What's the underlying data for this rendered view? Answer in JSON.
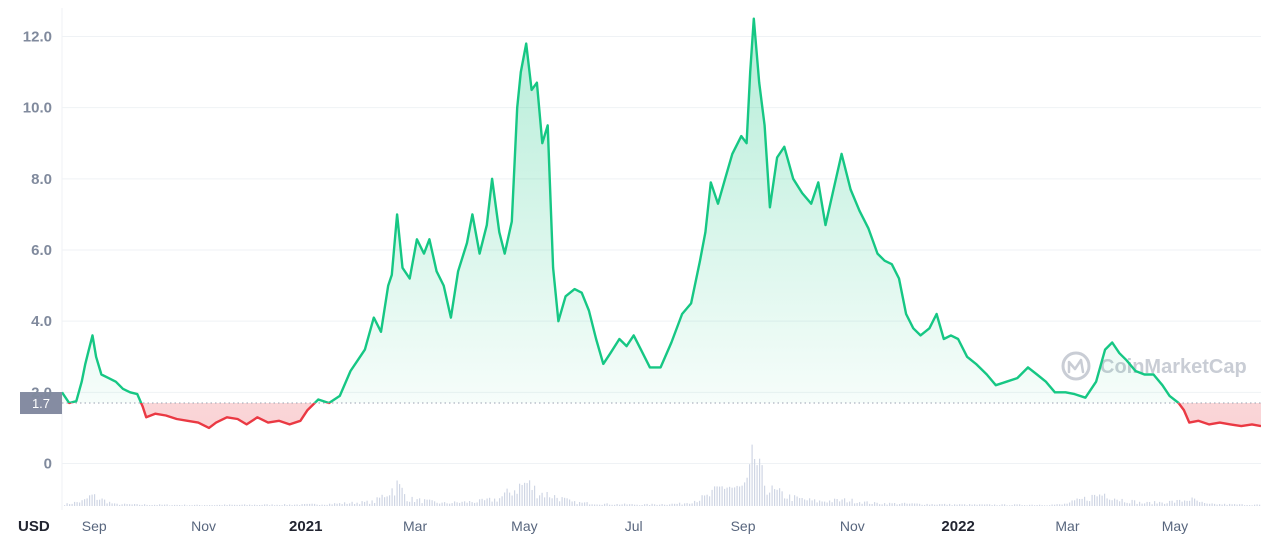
{
  "chart_data": {
    "type": "line",
    "currency_label": "USD",
    "reference_price": 1.7,
    "reference_label": "1.7",
    "y_ticks": [
      0,
      2.0,
      4.0,
      6.0,
      8.0,
      10.0,
      12.0
    ],
    "y_tick_labels": [
      "0",
      "2.0",
      "4.0",
      "6.0",
      "8.0",
      "10.0",
      "12.0"
    ],
    "ylim": [
      -1.25,
      12.8
    ],
    "xlim": [
      "2020-08-20",
      "2022-06-20"
    ],
    "x_ticks": [
      {
        "date": "2020-09-07",
        "label": "Sep",
        "year": false
      },
      {
        "date": "2020-11-07",
        "label": "Nov",
        "year": false
      },
      {
        "date": "2021-01-03",
        "label": "2021",
        "year": true
      },
      {
        "date": "2021-03-05",
        "label": "Mar",
        "year": false
      },
      {
        "date": "2021-05-05",
        "label": "May",
        "year": false
      },
      {
        "date": "2021-07-05",
        "label": "Jul",
        "year": false
      },
      {
        "date": "2021-09-04",
        "label": "Sep",
        "year": false
      },
      {
        "date": "2021-11-04",
        "label": "Nov",
        "year": false
      },
      {
        "date": "2022-01-02",
        "label": "2022",
        "year": true
      },
      {
        "date": "2022-03-04",
        "label": "Mar",
        "year": false
      },
      {
        "date": "2022-05-03",
        "label": "May",
        "year": false
      }
    ],
    "colors": {
      "above": "#16c784",
      "below": "#ea3943",
      "volume": "#cfd6e4",
      "grid": "#eff2f5"
    },
    "series": [
      {
        "points": [
          [
            "2020-08-20",
            2.0
          ],
          [
            "2020-08-24",
            1.7
          ],
          [
            "2020-08-28",
            1.75
          ],
          [
            "2020-08-31",
            2.3
          ],
          [
            "2020-09-02",
            2.8
          ],
          [
            "2020-09-04",
            3.2
          ],
          [
            "2020-09-06",
            3.6
          ],
          [
            "2020-09-08",
            3.0
          ],
          [
            "2020-09-11",
            2.5
          ],
          [
            "2020-09-15",
            2.4
          ],
          [
            "2020-09-19",
            2.3
          ],
          [
            "2020-09-23",
            2.1
          ],
          [
            "2020-09-27",
            2.0
          ],
          [
            "2020-10-01",
            1.95
          ],
          [
            "2020-10-04",
            1.6
          ],
          [
            "2020-10-06",
            1.3
          ],
          [
            "2020-10-11",
            1.4
          ],
          [
            "2020-10-17",
            1.35
          ],
          [
            "2020-10-23",
            1.25
          ],
          [
            "2020-10-29",
            1.2
          ],
          [
            "2020-11-04",
            1.15
          ],
          [
            "2020-11-10",
            1.0
          ],
          [
            "2020-11-14",
            1.15
          ],
          [
            "2020-11-20",
            1.3
          ],
          [
            "2020-11-26",
            1.25
          ],
          [
            "2020-12-01",
            1.1
          ],
          [
            "2020-12-07",
            1.3
          ],
          [
            "2020-12-13",
            1.15
          ],
          [
            "2020-12-19",
            1.2
          ],
          [
            "2020-12-25",
            1.1
          ],
          [
            "2020-12-31",
            1.2
          ],
          [
            "2021-01-04",
            1.5
          ],
          [
            "2021-01-10",
            1.8
          ],
          [
            "2021-01-16",
            1.7
          ],
          [
            "2021-01-22",
            1.9
          ],
          [
            "2021-01-28",
            2.6
          ],
          [
            "2021-02-01",
            2.9
          ],
          [
            "2021-02-05",
            3.2
          ],
          [
            "2021-02-10",
            4.1
          ],
          [
            "2021-02-14",
            3.7
          ],
          [
            "2021-02-18",
            5.0
          ],
          [
            "2021-02-20",
            5.3
          ],
          [
            "2021-02-23",
            7.0
          ],
          [
            "2021-02-26",
            5.5
          ],
          [
            "2021-03-02",
            5.2
          ],
          [
            "2021-03-06",
            6.3
          ],
          [
            "2021-03-10",
            5.9
          ],
          [
            "2021-03-13",
            6.3
          ],
          [
            "2021-03-17",
            5.4
          ],
          [
            "2021-03-21",
            5.0
          ],
          [
            "2021-03-25",
            4.1
          ],
          [
            "2021-03-29",
            5.4
          ],
          [
            "2021-04-03",
            6.2
          ],
          [
            "2021-04-06",
            7.0
          ],
          [
            "2021-04-10",
            5.9
          ],
          [
            "2021-04-14",
            6.7
          ],
          [
            "2021-04-17",
            8.0
          ],
          [
            "2021-04-21",
            6.5
          ],
          [
            "2021-04-24",
            5.9
          ],
          [
            "2021-04-28",
            6.8
          ],
          [
            "2021-05-01",
            10.0
          ],
          [
            "2021-05-03",
            11.0
          ],
          [
            "2021-05-06",
            11.8
          ],
          [
            "2021-05-09",
            10.5
          ],
          [
            "2021-05-12",
            10.7
          ],
          [
            "2021-05-15",
            9.0
          ],
          [
            "2021-05-18",
            9.5
          ],
          [
            "2021-05-21",
            5.5
          ],
          [
            "2021-05-24",
            4.0
          ],
          [
            "2021-05-28",
            4.7
          ],
          [
            "2021-06-02",
            4.9
          ],
          [
            "2021-06-06",
            4.8
          ],
          [
            "2021-06-10",
            4.3
          ],
          [
            "2021-06-14",
            3.5
          ],
          [
            "2021-06-18",
            2.8
          ],
          [
            "2021-06-22",
            3.1
          ],
          [
            "2021-06-27",
            3.5
          ],
          [
            "2021-07-01",
            3.3
          ],
          [
            "2021-07-05",
            3.6
          ],
          [
            "2021-07-09",
            3.2
          ],
          [
            "2021-07-14",
            2.7
          ],
          [
            "2021-07-20",
            2.7
          ],
          [
            "2021-07-26",
            3.4
          ],
          [
            "2021-08-01",
            4.2
          ],
          [
            "2021-08-06",
            4.5
          ],
          [
            "2021-08-11",
            5.7
          ],
          [
            "2021-08-14",
            6.5
          ],
          [
            "2021-08-17",
            7.9
          ],
          [
            "2021-08-21",
            7.3
          ],
          [
            "2021-08-25",
            8.0
          ],
          [
            "2021-08-29",
            8.7
          ],
          [
            "2021-09-03",
            9.2
          ],
          [
            "2021-09-06",
            9.0
          ],
          [
            "2021-09-08",
            11.0
          ],
          [
            "2021-09-10",
            12.5
          ],
          [
            "2021-09-13",
            10.7
          ],
          [
            "2021-09-16",
            9.5
          ],
          [
            "2021-09-19",
            7.2
          ],
          [
            "2021-09-23",
            8.6
          ],
          [
            "2021-09-27",
            8.9
          ],
          [
            "2021-10-02",
            8.0
          ],
          [
            "2021-10-07",
            7.6
          ],
          [
            "2021-10-12",
            7.3
          ],
          [
            "2021-10-16",
            7.9
          ],
          [
            "2021-10-20",
            6.7
          ],
          [
            "2021-10-24",
            7.6
          ],
          [
            "2021-10-29",
            8.7
          ],
          [
            "2021-11-03",
            7.7
          ],
          [
            "2021-11-08",
            7.1
          ],
          [
            "2021-11-13",
            6.6
          ],
          [
            "2021-11-18",
            5.9
          ],
          [
            "2021-11-22",
            5.7
          ],
          [
            "2021-11-26",
            5.6
          ],
          [
            "2021-11-30",
            5.2
          ],
          [
            "2021-12-04",
            4.2
          ],
          [
            "2021-12-08",
            3.8
          ],
          [
            "2021-12-12",
            3.6
          ],
          [
            "2021-12-17",
            3.8
          ],
          [
            "2021-12-21",
            4.2
          ],
          [
            "2021-12-25",
            3.5
          ],
          [
            "2021-12-29",
            3.6
          ],
          [
            "2022-01-02",
            3.5
          ],
          [
            "2022-01-07",
            3.0
          ],
          [
            "2022-01-12",
            2.8
          ],
          [
            "2022-01-18",
            2.5
          ],
          [
            "2022-01-23",
            2.2
          ],
          [
            "2022-01-29",
            2.3
          ],
          [
            "2022-02-04",
            2.4
          ],
          [
            "2022-02-10",
            2.7
          ],
          [
            "2022-02-15",
            2.5
          ],
          [
            "2022-02-20",
            2.3
          ],
          [
            "2022-02-25",
            2.0
          ],
          [
            "2022-03-03",
            2.0
          ],
          [
            "2022-03-08",
            1.95
          ],
          [
            "2022-03-14",
            1.85
          ],
          [
            "2022-03-20",
            2.3
          ],
          [
            "2022-03-25",
            3.2
          ],
          [
            "2022-03-29",
            3.4
          ],
          [
            "2022-04-02",
            3.1
          ],
          [
            "2022-04-06",
            2.9
          ],
          [
            "2022-04-11",
            2.6
          ],
          [
            "2022-04-16",
            2.5
          ],
          [
            "2022-04-21",
            2.5
          ],
          [
            "2022-04-26",
            2.2
          ],
          [
            "2022-04-30",
            1.9
          ],
          [
            "2022-05-05",
            1.7
          ],
          [
            "2022-05-08",
            1.5
          ],
          [
            "2022-05-11",
            1.15
          ],
          [
            "2022-05-16",
            1.2
          ],
          [
            "2022-05-22",
            1.1
          ],
          [
            "2022-05-28",
            1.15
          ],
          [
            "2022-06-03",
            1.1
          ],
          [
            "2022-06-09",
            1.05
          ],
          [
            "2022-06-15",
            1.1
          ],
          [
            "2022-06-20",
            1.05
          ]
        ]
      }
    ],
    "volume_level": [
      [
        "2020-08-20",
        0.05
      ],
      [
        "2020-09-01",
        0.22
      ],
      [
        "2020-09-05",
        0.45
      ],
      [
        "2020-09-10",
        0.3
      ],
      [
        "2020-09-18",
        0.08
      ],
      [
        "2020-10-01",
        0.06
      ],
      [
        "2020-11-01",
        0.04
      ],
      [
        "2020-12-01",
        0.05
      ],
      [
        "2021-01-01",
        0.06
      ],
      [
        "2021-01-20",
        0.1
      ],
      [
        "2021-02-10",
        0.18
      ],
      [
        "2021-02-23",
        0.9
      ],
      [
        "2021-03-01",
        0.3
      ],
      [
        "2021-03-20",
        0.12
      ],
      [
        "2021-04-10",
        0.2
      ],
      [
        "2021-04-20",
        0.3
      ],
      [
        "2021-05-01",
        0.8
      ],
      [
        "2021-05-06",
        1.0
      ],
      [
        "2021-05-12",
        0.6
      ],
      [
        "2021-05-20",
        0.45
      ],
      [
        "2021-06-01",
        0.15
      ],
      [
        "2021-06-20",
        0.08
      ],
      [
        "2021-07-10",
        0.06
      ],
      [
        "2021-08-01",
        0.1
      ],
      [
        "2021-08-15",
        0.4
      ],
      [
        "2021-08-25",
        0.9
      ],
      [
        "2021-09-01",
        0.7
      ],
      [
        "2021-09-06",
        0.9
      ],
      [
        "2021-09-08",
        1.6
      ],
      [
        "2021-09-10",
        2.2
      ],
      [
        "2021-09-13",
        1.4
      ],
      [
        "2021-09-18",
        0.7
      ],
      [
        "2021-10-01",
        0.35
      ],
      [
        "2021-10-15",
        0.2
      ],
      [
        "2021-11-01",
        0.25
      ],
      [
        "2021-11-15",
        0.12
      ],
      [
        "2021-12-01",
        0.1
      ],
      [
        "2022-01-01",
        0.06
      ],
      [
        "2022-02-01",
        0.05
      ],
      [
        "2022-03-01",
        0.06
      ],
      [
        "2022-03-25",
        0.55
      ],
      [
        "2022-04-01",
        0.3
      ],
      [
        "2022-04-15",
        0.12
      ],
      [
        "2022-05-05",
        0.2
      ],
      [
        "2022-05-11",
        0.3
      ],
      [
        "2022-05-20",
        0.08
      ],
      [
        "2022-06-20",
        0.05
      ]
    ],
    "watermark": {
      "text": "CoinMarketCap",
      "icon": "coinmarketcap-logo-icon"
    }
  }
}
